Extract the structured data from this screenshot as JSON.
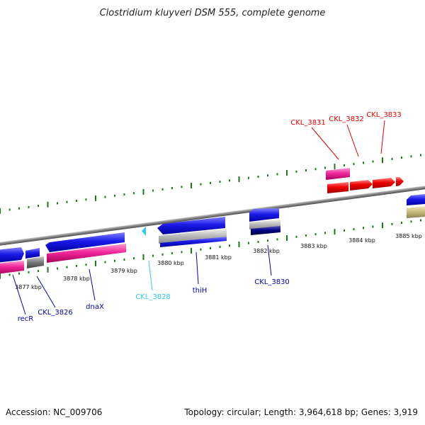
{
  "title": "Clostridium kluyveri DSM 555, complete genome",
  "footer": {
    "accession": "Accession: NC_009706",
    "summary": "Topology: circular; Length: 3,964,618 bp; Genes: 3,919"
  },
  "kbp_ticks": [
    "3877 kbp",
    "3878 kbp",
    "3879 kbp",
    "3880 kbp",
    "3881 kbp",
    "3882 kbp",
    "3883 kbp",
    "3884 kbp",
    "3885 kbp"
  ],
  "gene_labels": {
    "recR": "recR",
    "ckl3826": "CKL_3826",
    "dnaX": "dnaX",
    "ckl3828": "CKL_3828",
    "thiH": "thiH",
    "ckl3830": "CKL_3830",
    "ckl3831": "CKL_3831",
    "ckl3832": "CKL_3832",
    "ckl3833": "CKL_3833"
  },
  "colors": {
    "blue": "#1010e0",
    "magenta": "#e8208f",
    "red": "#f00000",
    "grey": "#808080",
    "cyan": "#30c8e8",
    "olive": "#c8bc80",
    "navy": "#000080",
    "tick_green": "#1a7a1a",
    "label_blue": "#0000aa",
    "label_red": "#dd0000",
    "label_cyan": "#30c8e8"
  }
}
